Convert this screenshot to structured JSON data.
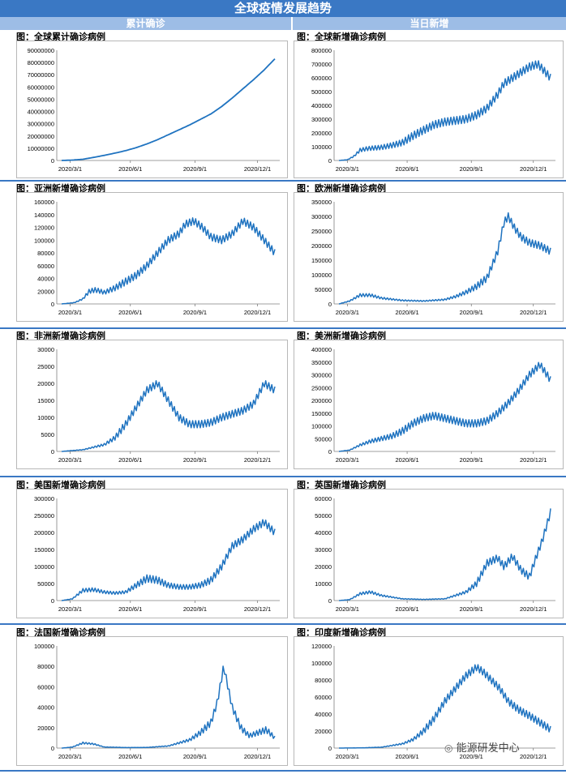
{
  "page": {
    "title": "全球疫情发展趋势",
    "col_left": "累计确诊",
    "col_right": "当日新增",
    "watermark": "能源研发中心",
    "line_color": "#1f73c0"
  },
  "chart_data": [
    {
      "type": "line",
      "title": "图：全球累计确诊病例",
      "x_ticks": [
        "2020/3/1",
        "2020/6/1",
        "2020/9/1",
        "2020/12/1"
      ],
      "y_ticks": [
        "0",
        "10000000",
        "20000000",
        "30000000",
        "40000000",
        "50000000",
        "60000000",
        "70000000",
        "80000000",
        "90000000"
      ],
      "ylim": [
        0,
        90000000
      ],
      "x": [
        0,
        0.05,
        0.1,
        0.15,
        0.2,
        0.25,
        0.3,
        0.35,
        0.4,
        0.45,
        0.5,
        0.55,
        0.6,
        0.65,
        0.7,
        0.75,
        0.8,
        0.85,
        0.9,
        0.95,
        1.0
      ],
      "values": [
        0,
        300000,
        1000000,
        2500000,
        4200000,
        6000000,
        8000000,
        10500000,
        13500000,
        17000000,
        21000000,
        25000000,
        29000000,
        33500000,
        38000000,
        44000000,
        51000000,
        58500000,
        66000000,
        74000000,
        83000000
      ]
    },
    {
      "type": "line",
      "title": "图：全球新增确诊病例",
      "x_ticks": [
        "2020/3/1",
        "2020/6/1",
        "2020/9/1",
        "2020/12/1"
      ],
      "y_ticks": [
        "0",
        "100000",
        "200000",
        "300000",
        "400000",
        "500000",
        "600000",
        "700000",
        "800000"
      ],
      "ylim": [
        0,
        800000
      ],
      "x": [
        0,
        0.04,
        0.07,
        0.1,
        0.13,
        0.16,
        0.2,
        0.25,
        0.3,
        0.35,
        0.4,
        0.45,
        0.5,
        0.55,
        0.6,
        0.65,
        0.7,
        0.75,
        0.78,
        0.82,
        0.86,
        0.9,
        0.94,
        0.97,
        1.0
      ],
      "values": [
        0,
        5000,
        30000,
        75000,
        85000,
        90000,
        95000,
        110000,
        130000,
        180000,
        220000,
        260000,
        280000,
        290000,
        300000,
        330000,
        380000,
        480000,
        560000,
        600000,
        640000,
        680000,
        700000,
        650000,
        600000
      ]
    },
    {
      "type": "line",
      "title": "图：亚洲新增确诊病例",
      "x_ticks": [
        "2020/3/1",
        "2020/6/1",
        "2020/9/1",
        "2020/12/1"
      ],
      "y_ticks": [
        "0",
        "20000",
        "40000",
        "60000",
        "80000",
        "100000",
        "120000",
        "140000",
        "160000"
      ],
      "ylim": [
        0,
        160000
      ],
      "x": [
        0,
        0.06,
        0.1,
        0.13,
        0.16,
        0.2,
        0.25,
        0.3,
        0.35,
        0.4,
        0.45,
        0.5,
        0.55,
        0.58,
        0.62,
        0.66,
        0.7,
        0.75,
        0.8,
        0.85,
        0.9,
        0.95,
        1.0
      ],
      "values": [
        0,
        2000,
        8000,
        20000,
        22000,
        18000,
        25000,
        35000,
        45000,
        60000,
        80000,
        100000,
        110000,
        125000,
        130000,
        120000,
        105000,
        100000,
        110000,
        130000,
        120000,
        100000,
        80000
      ]
    },
    {
      "type": "line",
      "title": "图：欧洲新增确诊病例",
      "x_ticks": [
        "2020/3/1",
        "2020/6/1",
        "2020/9/1",
        "2020/12/1"
      ],
      "y_ticks": [
        "0",
        "50000",
        "100000",
        "150000",
        "200000",
        "250000",
        "300000",
        "350000"
      ],
      "ylim": [
        0,
        350000
      ],
      "x": [
        0,
        0.05,
        0.1,
        0.15,
        0.2,
        0.3,
        0.4,
        0.5,
        0.55,
        0.6,
        0.65,
        0.7,
        0.75,
        0.78,
        0.8,
        0.83,
        0.86,
        0.9,
        0.95,
        1.0
      ],
      "values": [
        0,
        10000,
        30000,
        30000,
        20000,
        12000,
        10000,
        15000,
        25000,
        40000,
        60000,
        90000,
        180000,
        280000,
        300000,
        260000,
        230000,
        210000,
        200000,
        180000
      ]
    },
    {
      "type": "line",
      "title": "图：非洲新增确诊病例",
      "x_ticks": [
        "2020/3/1",
        "2020/6/1",
        "2020/9/1",
        "2020/12/1"
      ],
      "y_ticks": [
        "0",
        "5000",
        "10000",
        "15000",
        "20000",
        "25000",
        "30000"
      ],
      "ylim": [
        0,
        30000
      ],
      "x": [
        0,
        0.1,
        0.2,
        0.25,
        0.3,
        0.35,
        0.4,
        0.45,
        0.5,
        0.55,
        0.6,
        0.65,
        0.7,
        0.75,
        0.8,
        0.85,
        0.9,
        0.95,
        1.0
      ],
      "values": [
        0,
        500,
        2000,
        4000,
        8000,
        13000,
        18000,
        20000,
        15000,
        10000,
        8000,
        8000,
        8500,
        10000,
        11000,
        12000,
        14000,
        20000,
        18000
      ]
    },
    {
      "type": "line",
      "title": "图：美洲新增确诊病例",
      "x_ticks": [
        "2020/3/1",
        "2020/6/1",
        "2020/9/1",
        "2020/12/1"
      ],
      "y_ticks": [
        "0",
        "50000",
        "100000",
        "150000",
        "200000",
        "250000",
        "300000",
        "350000",
        "400000"
      ],
      "ylim": [
        0,
        400000
      ],
      "x": [
        0,
        0.05,
        0.1,
        0.15,
        0.2,
        0.25,
        0.3,
        0.35,
        0.4,
        0.45,
        0.5,
        0.55,
        0.6,
        0.65,
        0.7,
        0.75,
        0.8,
        0.85,
        0.9,
        0.95,
        1.0
      ],
      "values": [
        0,
        5000,
        25000,
        40000,
        50000,
        60000,
        80000,
        110000,
        130000,
        140000,
        130000,
        120000,
        110000,
        110000,
        120000,
        150000,
        190000,
        240000,
        300000,
        340000,
        280000
      ]
    },
    {
      "type": "line",
      "title": "图：美国新增确诊病例",
      "x_ticks": [
        "2020/3/1",
        "2020/6/1",
        "2020/9/1",
        "2020/12/1"
      ],
      "y_ticks": [
        "0",
        "50000",
        "100000",
        "150000",
        "200000",
        "250000",
        "300000"
      ],
      "ylim": [
        0,
        300000
      ],
      "x": [
        0,
        0.05,
        0.1,
        0.15,
        0.2,
        0.25,
        0.3,
        0.35,
        0.4,
        0.45,
        0.5,
        0.55,
        0.6,
        0.65,
        0.7,
        0.75,
        0.8,
        0.85,
        0.9,
        0.95,
        1.0
      ],
      "values": [
        0,
        5000,
        30000,
        32000,
        25000,
        22000,
        25000,
        45000,
        65000,
        60000,
        45000,
        40000,
        40000,
        45000,
        60000,
        100000,
        160000,
        180000,
        210000,
        230000,
        200000
      ]
    },
    {
      "type": "line",
      "title": "图：英国新增确诊病例",
      "x_ticks": [
        "2020/3/1",
        "2020/6/1",
        "2020/9/1",
        "2020/12/1"
      ],
      "y_ticks": [
        "0",
        "10000",
        "20000",
        "30000",
        "40000",
        "50000",
        "60000"
      ],
      "ylim": [
        0,
        60000
      ],
      "x": [
        0,
        0.05,
        0.1,
        0.15,
        0.2,
        0.3,
        0.4,
        0.5,
        0.6,
        0.65,
        0.7,
        0.75,
        0.78,
        0.82,
        0.86,
        0.9,
        0.93,
        0.96,
        1.0
      ],
      "values": [
        0,
        500,
        4000,
        5000,
        3000,
        1000,
        700,
        1000,
        5000,
        10000,
        22000,
        25000,
        20000,
        26000,
        18000,
        14000,
        25000,
        35000,
        52000
      ]
    },
    {
      "type": "line",
      "title": "图：法国新增确诊病例",
      "x_ticks": [
        "2020/3/1",
        "2020/6/1",
        "2020/9/1",
        "2020/12/1"
      ],
      "y_ticks": [
        "0",
        "20000",
        "40000",
        "60000",
        "80000",
        "100000"
      ],
      "ylim": [
        0,
        100000
      ],
      "x": [
        0,
        0.05,
        0.1,
        0.15,
        0.2,
        0.3,
        0.4,
        0.5,
        0.6,
        0.65,
        0.7,
        0.73,
        0.76,
        0.8,
        0.84,
        0.88,
        0.92,
        0.96,
        1.0
      ],
      "values": [
        0,
        1000,
        5000,
        4000,
        1000,
        500,
        600,
        2000,
        8000,
        15000,
        25000,
        45000,
        80000,
        40000,
        20000,
        12000,
        15000,
        18000,
        10000
      ]
    },
    {
      "type": "line",
      "title": "图：印度新增确诊病例",
      "x_ticks": [
        "2020/3/1",
        "2020/6/1",
        "2020/9/1",
        "2020/12/1"
      ],
      "y_ticks": [
        "0",
        "20000",
        "40000",
        "60000",
        "80000",
        "100000",
        "120000"
      ],
      "ylim": [
        0,
        120000
      ],
      "x": [
        0,
        0.1,
        0.2,
        0.3,
        0.35,
        0.4,
        0.45,
        0.5,
        0.55,
        0.6,
        0.65,
        0.68,
        0.72,
        0.76,
        0.8,
        0.85,
        0.9,
        0.95,
        1.0
      ],
      "values": [
        0,
        200,
        1000,
        5000,
        10000,
        20000,
        35000,
        55000,
        70000,
        85000,
        95000,
        90000,
        80000,
        70000,
        55000,
        45000,
        38000,
        30000,
        22000
      ]
    }
  ]
}
